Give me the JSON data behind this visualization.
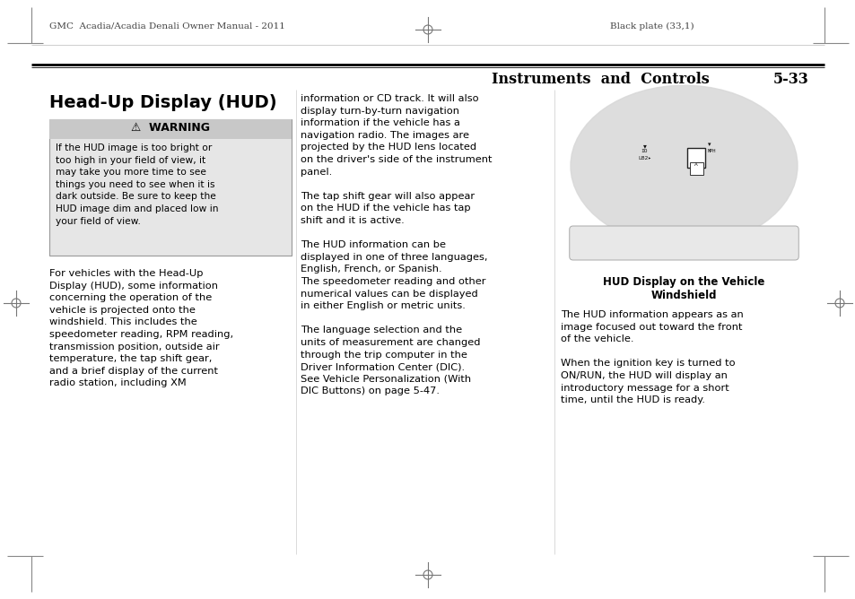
{
  "page_width": 9.54,
  "page_height": 6.68,
  "bg_color": "#ffffff",
  "header_left": "GMC  Acadia/Acadia Denali Owner Manual - 2011",
  "header_right": "Black plate (33,1)",
  "section_title": "Instruments  and  Controls",
  "page_number": "5-33",
  "main_title": "Head-Up Display (HUD)",
  "warning_title": "⚠  WARNING",
  "warning_body": "If the HUD image is too bright or\ntoo high in your field of view, it\nmay take you more time to see\nthings you need to see when it is\ndark outside. Be sure to keep the\nHUD image dim and placed low in\nyour field of view.",
  "col1_body": "For vehicles with the Head-Up\nDisplay (HUD), some information\nconcerning the operation of the\nvehicle is projected onto the\nwindshield. This includes the\nspeedometer reading, RPM reading,\ntransmission position, outside air\ntemperature, the tap shift gear,\nand a brief display of the current\nradio station, including XM",
  "col2_body": "information or CD track. It will also\ndisplay turn-by-turn navigation\ninformation if the vehicle has a\nnavigation radio. The images are\nprojected by the HUD lens located\non the driver's side of the instrument\npanel.\n\nThe tap shift gear will also appear\non the HUD if the vehicle has tap\nshift and it is active.\n\nThe HUD information can be\ndisplayed in one of three languages,\nEnglish, French, or Spanish.\nThe speedometer reading and other\nnumerical values can be displayed\nin either English or metric units.\n\nThe language selection and the\nunits of measurement are changed\nthrough the trip computer in the\nDriver Information Center (DIC).\nSee Vehicle Personalization (With\nDIC Buttons) on page 5-47.",
  "image_caption_line1": "HUD Display on the Vehicle",
  "image_caption_line2": "Windshield",
  "col3_body": "The HUD information appears as an\nimage focused out toward the front\nof the vehicle.\n\nWhen the ignition key is turned to\nON/RUN, the HUD will display an\nintroductory message for a short\ntime, until the HUD is ready.",
  "header_font_size": 7.5,
  "section_font_size": 11.5,
  "main_title_font_size": 14,
  "warning_title_font_size": 9,
  "body_font_size": 8.2,
  "caption_font_size": 8.5
}
